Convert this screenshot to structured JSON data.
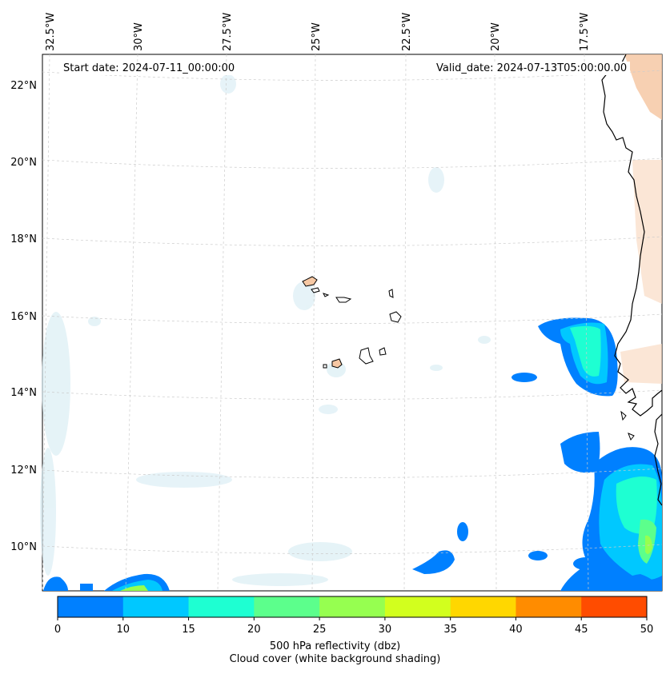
{
  "annotations": {
    "start_date": "Start date: 2024-07-11_00:00:00",
    "valid_date": "Valid_date: 2024-07-13T05:00:00.00"
  },
  "longitude_labels": [
    "32.5°W",
    "30°W",
    "27.5°W",
    "25°W",
    "22.5°W",
    "20°W",
    "17.5°W"
  ],
  "latitude_labels": [
    "22°N",
    "20°N",
    "18°N",
    "16°N",
    "14°N",
    "12°N",
    "10°N"
  ],
  "colorbar": {
    "ticks": [
      "0",
      "10",
      "15",
      "20",
      "25",
      "30",
      "35",
      "40",
      "45",
      "50"
    ],
    "colors": [
      "#0080ff",
      "#00c8ff",
      "#1effd2",
      "#5cff8c",
      "#96ff50",
      "#d2ff1e",
      "#ffd700",
      "#ff8c00",
      "#ff4c00"
    ],
    "label_line1": "500 hPa reflectivity (dbz)",
    "label_line2": "Cloud cover (white background shading)"
  },
  "map": {
    "coastline_color": "#000000",
    "land_shading_color": "#f6c8a4",
    "cloud_shading_color": "#dbeef5",
    "gridline_color": "#cccccc"
  }
}
